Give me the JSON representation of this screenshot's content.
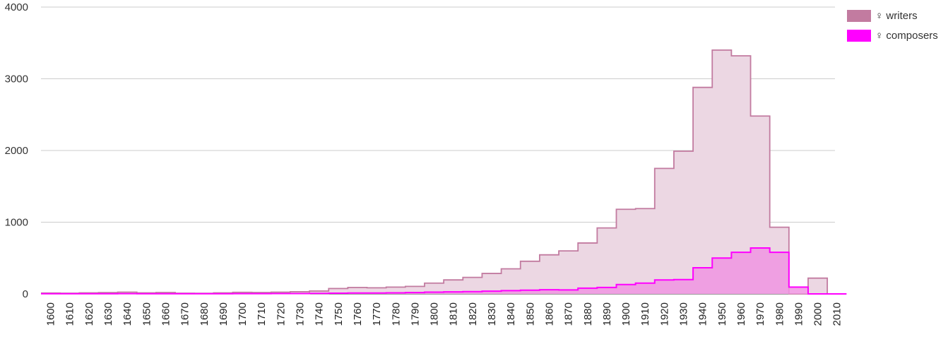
{
  "chart_data": {
    "type": "area",
    "title": "",
    "xlabel": "",
    "ylabel": "",
    "ylim": [
      0,
      4000
    ],
    "y_ticks": [
      "0",
      "1000",
      "2000",
      "3000",
      "4000"
    ],
    "categories": [
      "1600",
      "1610",
      "1620",
      "1630",
      "1640",
      "1650",
      "1660",
      "1670",
      "1680",
      "1690",
      "1700",
      "1710",
      "1720",
      "1730",
      "1740",
      "1750",
      "1760",
      "1770",
      "1780",
      "1790",
      "1800",
      "1810",
      "1820",
      "1830",
      "1840",
      "1850",
      "1860",
      "1870",
      "1880",
      "1890",
      "1900",
      "1910",
      "1920",
      "1930",
      "1940",
      "1950",
      "1960",
      "1970",
      "1980",
      "1990",
      "2000",
      "2010"
    ],
    "legend_position": "top-right",
    "grid": true,
    "series": [
      {
        "name": "♀ writers",
        "color": "#c27ba0",
        "fill": "#ecd7e3",
        "values": [
          12,
          10,
          15,
          18,
          25,
          15,
          20,
          10,
          8,
          15,
          22,
          20,
          25,
          30,
          40,
          75,
          90,
          85,
          95,
          105,
          150,
          195,
          230,
          285,
          350,
          455,
          545,
          600,
          710,
          920,
          1180,
          1190,
          1750,
          1990,
          2880,
          3400,
          3320,
          2480,
          930,
          0,
          220,
          0
        ]
      },
      {
        "name": "♀ composers",
        "color": "#ff00ff",
        "fill": "#f095e2",
        "values": [
          2,
          2,
          3,
          3,
          4,
          3,
          3,
          2,
          2,
          3,
          4,
          4,
          5,
          5,
          7,
          10,
          12,
          12,
          15,
          18,
          25,
          28,
          32,
          38,
          45,
          52,
          58,
          55,
          80,
          90,
          130,
          150,
          195,
          200,
          365,
          500,
          580,
          640,
          580,
          95,
          0,
          0
        ]
      }
    ]
  }
}
